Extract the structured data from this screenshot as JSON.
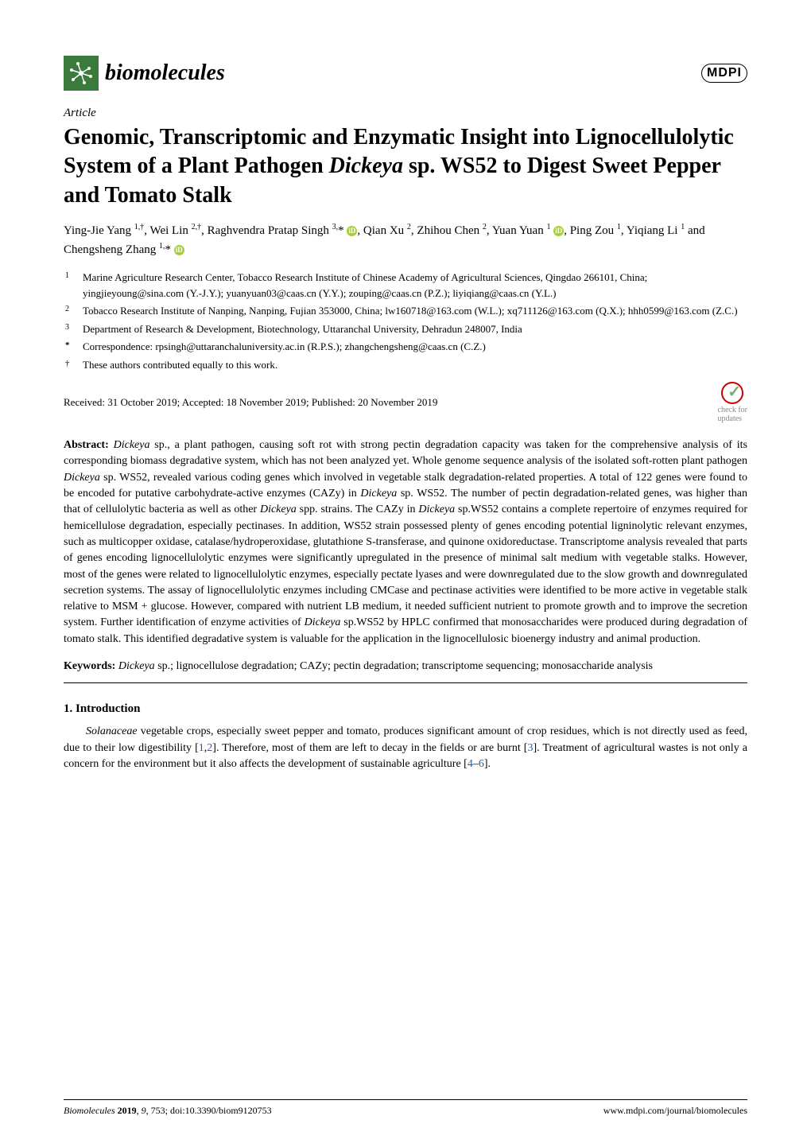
{
  "journal": {
    "name": "biomolecules",
    "publisher_logo": "MDPI"
  },
  "article_type": "Article",
  "title_parts": {
    "pre": "Genomic, Transcriptomic and Enzymatic Insight into Lignocellulolytic System of a Plant Pathogen ",
    "italic": "Dickeya",
    "post": " sp. WS52 to Digest Sweet Pepper and Tomato Stalk"
  },
  "authors_html": "Ying-Jie Yang <span class='sup'>1,†</span>, Wei Lin <span class='sup'>2,†</span>, Raghvendra Pratap Singh <span class='sup'>3,</span>* <span class='orcid'>iD</span>, Qian Xu <span class='sup'>2</span>, Zhihou Chen <span class='sup'>2</span>, Yuan Yuan <span class='sup'>1</span> <span class='orcid'>iD</span>, Ping Zou <span class='sup'>1</span>, Yiqiang Li <span class='sup'>1</span> and Chengsheng Zhang <span class='sup'>1,</span>* <span class='orcid'>iD</span>",
  "affiliations": [
    {
      "num": "1",
      "text": "Marine Agriculture Research Center, Tobacco Research Institute of Chinese Academy of Agricultural Sciences, Qingdao 266101, China; yingjieyoung@sina.com (Y.-J.Y.); yuanyuan03@caas.cn (Y.Y.); zouping@caas.cn (P.Z.); liyiqiang@caas.cn (Y.L.)"
    },
    {
      "num": "2",
      "text": "Tobacco Research Institute of Nanping, Nanping, Fujian 353000, China; lw160718@163.com (W.L.); xq711126@163.com (Q.X.); hhh0599@163.com (Z.C.)"
    },
    {
      "num": "3",
      "text": "Department of Research & Development, Biotechnology, Uttaranchal University, Dehradun 248007, India"
    },
    {
      "num": "*",
      "text": "Correspondence: rpsingh@uttaranchaluniversity.ac.in (R.P.S.); zhangchengsheng@caas.cn (C.Z.)"
    },
    {
      "num": "†",
      "text": "These authors contributed equally to this work."
    }
  ],
  "dates": "Received: 31 October 2019; Accepted: 18 November 2019; Published: 20 November 2019",
  "check_updates": "check for\nupdates",
  "abstract_label": "Abstract:",
  "abstract_html": " <span class='italic'>Dickeya</span> sp., a plant pathogen, causing soft rot with strong pectin degradation capacity was taken for the comprehensive analysis of its corresponding biomass degradative system, which has not been analyzed yet. Whole genome sequence analysis of the isolated soft-rotten plant pathogen <span class='italic'>Dickeya</span> sp. WS52, revealed various coding genes which involved in vegetable stalk degradation-related properties. A total of 122 genes were found to be encoded for putative carbohydrate-active enzymes (CAZy) in <span class='italic'>Dickeya</span> sp. WS52. The number of pectin degradation-related genes, was higher than that of cellulolytic bacteria as well as other <span class='italic'>Dickeya</span> spp. strains. The CAZy in <span class='italic'>Dickeya</span> sp.WS52 contains a complete repertoire of enzymes required for hemicellulose degradation, especially pectinases. In addition, WS52 strain possessed plenty of genes encoding potential ligninolytic relevant enzymes, such as multicopper oxidase, catalase/hydroperoxidase, glutathione S-transferase, and quinone oxidoreductase. Transcriptome analysis revealed that parts of genes encoding lignocellulolytic enzymes were significantly upregulated in the presence of minimal salt medium with vegetable stalks. However, most of the genes were related to lignocellulolytic enzymes, especially pectate lyases and were downregulated due to the slow growth and downregulated secretion systems. The assay of lignocellulolytic enzymes including CMCase and pectinase activities were identified to be more active in vegetable stalk relative to MSM + glucose. However, compared with nutrient LB medium, it needed sufficient nutrient to promote growth and to improve the secretion system. Further identification of enzyme activities of <span class='italic'>Dickeya</span> sp.WS52 by HPLC confirmed that monosaccharides were produced during degradation of tomato stalk. This identified degradative system is valuable for the application in the lignocellulosic bioenergy industry and animal production.",
  "keywords_label": "Keywords:",
  "keywords_html": " <span class='italic'>Dickeya</span> sp.; lignocellulose degradation; CAZy; pectin degradation; transcriptome sequencing; monosaccharide analysis",
  "section1_heading": "1. Introduction",
  "intro_html": "<span class='italic'>Solanaceae</span> vegetable crops, especially sweet pepper and tomato, produces significant amount of crop residues, which is not directly used as feed, due to their low digestibility [<span class='link'>1</span>,<span class='link'>2</span>]. Therefore, most of them are left to decay in the fields or are burnt [<span class='link'>3</span>]. Treatment of agricultural wastes is not only a concern for the environment but it also affects the development of sustainable agriculture [<span class='link'>4</span>–<span class='link'>6</span>].",
  "footer": {
    "left_html": "<span class='italic'>Biomolecules</span> <b>2019</b>, <span class='italic'>9</span>, 753; doi:10.3390/biom9120753",
    "right": "www.mdpi.com/journal/biomolecules"
  }
}
